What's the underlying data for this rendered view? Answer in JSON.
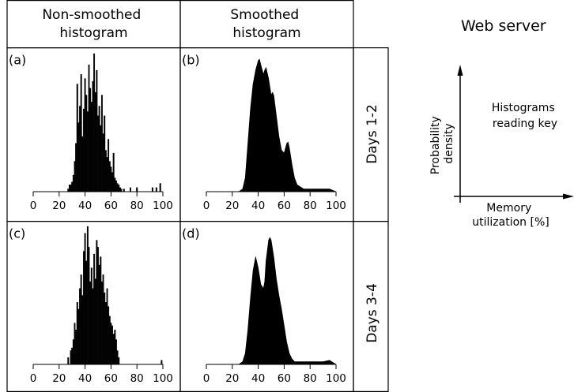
{
  "figure": {
    "col_headers": [
      "Non-smoothed\nhistogram",
      "Smoothed\nhistogram"
    ],
    "row_labels": [
      "Days 1-2",
      "Days 3-4"
    ],
    "side_title": "Web server",
    "key": {
      "text": "Histograms\nreading key",
      "y_label": "Probability\ndensity",
      "x_label": "Memory\nutilization [%]"
    }
  },
  "chart_data": [
    {
      "panel": "(a)",
      "type": "bar",
      "smoothed": false,
      "x_ticks": [
        0,
        20,
        40,
        60,
        80,
        100
      ],
      "xlim": [
        0,
        100
      ],
      "bins": [
        [
          27,
          0.02
        ],
        [
          28,
          0.05
        ],
        [
          29,
          0.05
        ],
        [
          30,
          0.07
        ],
        [
          31,
          0.12
        ],
        [
          32,
          0.22
        ],
        [
          33,
          0.35
        ],
        [
          34,
          0.78
        ],
        [
          35,
          0.5
        ],
        [
          36,
          0.62
        ],
        [
          37,
          0.85
        ],
        [
          38,
          0.4
        ],
        [
          39,
          0.6
        ],
        [
          40,
          0.82
        ],
        [
          41,
          0.7
        ],
        [
          42,
          0.58
        ],
        [
          43,
          0.92
        ],
        [
          44,
          0.75
        ],
        [
          45,
          0.65
        ],
        [
          46,
          0.8
        ],
        [
          47,
          1.0
        ],
        [
          48,
          0.72
        ],
        [
          49,
          0.88
        ],
        [
          50,
          0.55
        ],
        [
          51,
          0.62
        ],
        [
          52,
          0.48
        ],
        [
          53,
          0.7
        ],
        [
          54,
          0.42
        ],
        [
          55,
          0.55
        ],
        [
          56,
          0.3
        ],
        [
          57,
          0.25
        ],
        [
          58,
          0.38
        ],
        [
          59,
          0.22
        ],
        [
          60,
          0.18
        ],
        [
          61,
          0.14
        ],
        [
          62,
          0.28
        ],
        [
          63,
          0.1
        ],
        [
          64,
          0.08
        ],
        [
          65,
          0.06
        ],
        [
          66,
          0.05
        ],
        [
          67,
          0.03
        ],
        [
          68,
          0.02
        ],
        [
          70,
          0.02
        ],
        [
          75,
          0.03
        ],
        [
          80,
          0.03
        ],
        [
          92,
          0.03
        ],
        [
          95,
          0.03
        ],
        [
          98,
          0.06
        ]
      ]
    },
    {
      "panel": "(b)",
      "type": "area",
      "smoothed": true,
      "x_ticks": [
        0,
        20,
        40,
        60,
        80,
        100
      ],
      "xlim": [
        0,
        100
      ],
      "x": [
        25,
        28,
        30,
        32,
        34,
        36,
        38,
        40,
        41,
        42,
        44,
        45,
        46,
        48,
        50,
        51,
        52,
        54,
        56,
        58,
        60,
        62,
        63,
        64,
        66,
        68,
        70,
        75,
        80,
        85,
        90,
        95,
        100
      ],
      "y": [
        0,
        0.02,
        0.1,
        0.35,
        0.6,
        0.78,
        0.88,
        0.95,
        0.96,
        0.92,
        0.85,
        0.88,
        0.9,
        0.82,
        0.7,
        0.72,
        0.7,
        0.55,
        0.4,
        0.3,
        0.28,
        0.35,
        0.36,
        0.32,
        0.2,
        0.1,
        0.05,
        0.02,
        0.02,
        0.02,
        0.02,
        0.02,
        0
      ]
    },
    {
      "panel": "(c)",
      "type": "bar",
      "smoothed": false,
      "x_ticks": [
        0,
        20,
        40,
        60,
        80,
        100
      ],
      "xlim": [
        0,
        100
      ],
      "bins": [
        [
          27,
          0.05
        ],
        [
          29,
          0.1
        ],
        [
          30,
          0.12
        ],
        [
          31,
          0.18
        ],
        [
          32,
          0.3
        ],
        [
          33,
          0.25
        ],
        [
          34,
          0.45
        ],
        [
          35,
          0.4
        ],
        [
          36,
          0.55
        ],
        [
          37,
          0.65
        ],
        [
          38,
          0.5
        ],
        [
          39,
          0.82
        ],
        [
          40,
          0.95
        ],
        [
          41,
          0.75
        ],
        [
          42,
          1.0
        ],
        [
          43,
          0.85
        ],
        [
          44,
          0.6
        ],
        [
          45,
          0.7
        ],
        [
          46,
          0.55
        ],
        [
          47,
          0.8
        ],
        [
          48,
          0.62
        ],
        [
          49,
          0.9
        ],
        [
          50,
          0.85
        ],
        [
          51,
          0.72
        ],
        [
          52,
          0.78
        ],
        [
          53,
          0.6
        ],
        [
          54,
          0.65
        ],
        [
          55,
          0.52
        ],
        [
          56,
          0.45
        ],
        [
          57,
          0.55
        ],
        [
          58,
          0.42
        ],
        [
          59,
          0.35
        ],
        [
          60,
          0.3
        ],
        [
          61,
          0.28
        ],
        [
          62,
          0.22
        ],
        [
          63,
          0.25
        ],
        [
          64,
          0.18
        ],
        [
          65,
          0.1
        ],
        [
          66,
          0.05
        ],
        [
          99,
          0.03
        ]
      ]
    },
    {
      "panel": "(d)",
      "type": "area",
      "smoothed": true,
      "x_ticks": [
        0,
        20,
        40,
        60,
        80,
        100
      ],
      "xlim": [
        0,
        100
      ],
      "x": [
        25,
        28,
        30,
        32,
        34,
        36,
        38,
        40,
        42,
        44,
        45,
        46,
        48,
        49,
        50,
        52,
        54,
        56,
        58,
        60,
        62,
        64,
        66,
        68,
        70,
        75,
        80,
        85,
        90,
        95,
        100
      ],
      "y": [
        0,
        0.02,
        0.08,
        0.25,
        0.48,
        0.68,
        0.78,
        0.7,
        0.58,
        0.55,
        0.6,
        0.75,
        0.9,
        0.92,
        0.9,
        0.78,
        0.62,
        0.5,
        0.4,
        0.28,
        0.16,
        0.08,
        0.04,
        0.02,
        0.02,
        0.02,
        0.02,
        0.02,
        0.02,
        0.03,
        0
      ]
    }
  ]
}
